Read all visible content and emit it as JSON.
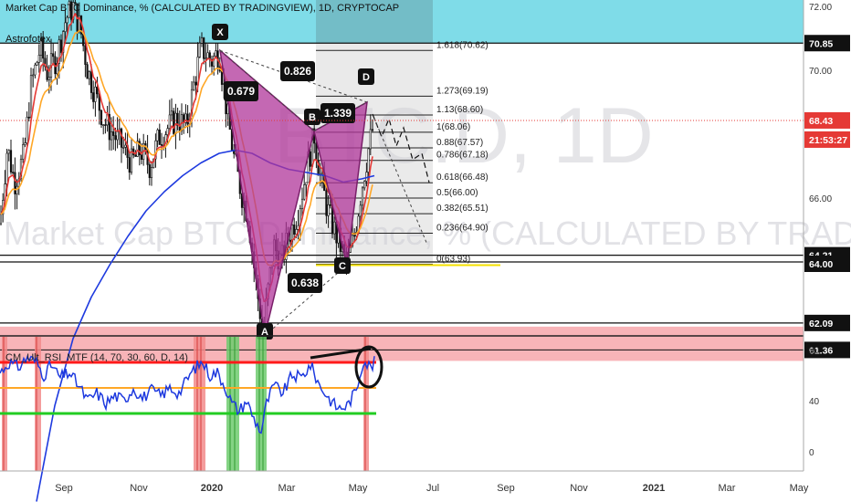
{
  "header": {
    "title": "Market Cap BTC Dominance, % (CALCULATED BY TRADINGVIEW), 1D, CRYPTOCAP",
    "author": "Astrofotex"
  },
  "watermark": {
    "big": "BTC.D, 1D",
    "wide": "Market Cap BTC Dominance, % (CALCULATED BY TRADINGVIEW)"
  },
  "colors": {
    "candle": "#111111",
    "ema_red": "#e53935",
    "ema_orange": "#ffa726",
    "ema_yellow": "#f5d000",
    "ma_blue": "#1e3adf",
    "pattern_fill": "#b0359a",
    "resistance_zone": "#7fdce8",
    "support_zone": "#f8b4b8",
    "rsi_line": "#1e3adf",
    "rsi_upper": "#ff1a1a",
    "rsi_mid": "#ffa726",
    "rsi_lower": "#22cc22",
    "highlight_red": "#f28b8b",
    "highlight_green": "#6ecb6e",
    "current_price": "#e53935"
  },
  "chart_data": [
    {
      "type": "candlestick",
      "title": "Market Cap BTC Dominance, % (CALCULATED BY TRADINGVIEW), 1D, CRYPTOCAP",
      "x_ticks": [
        "Sep",
        "Nov",
        "2020",
        "Mar",
        "May",
        "Jul",
        "Sep",
        "Nov",
        "2021",
        "Mar",
        "May"
      ],
      "y_ticks": [
        72.0,
        70.0,
        68.0,
        66.0,
        64.0,
        62.0
      ],
      "ylim": [
        60.8,
        72.2
      ],
      "price_labels": [
        {
          "value": 70.85,
          "text": "70.85",
          "style": "black"
        },
        {
          "value": 68.43,
          "text": "68.43",
          "style": "red"
        },
        {
          "value": 68.43,
          "text": "21:53:27",
          "style": "red_time"
        },
        {
          "value": 64.21,
          "text": "64.21",
          "style": "black"
        },
        {
          "value": 64.0,
          "text": "64.00",
          "style": "black"
        },
        {
          "value": 62.09,
          "text": "62.09",
          "style": "black"
        },
        {
          "value": 61.36,
          "text": "61.36",
          "style": "black"
        }
      ],
      "zones": [
        {
          "name": "resistance",
          "from": 70.85,
          "to": 72.2
        },
        {
          "name": "support",
          "from": 60.8,
          "to": 61.36
        }
      ],
      "horizontal_lines": [
        70.85,
        64.21,
        64.0,
        62.09
      ],
      "harmonic_points": [
        {
          "label": "X",
          "value": 70.62
        },
        {
          "label": "A",
          "value": 61.7
        },
        {
          "label": "B",
          "value": 68.1
        },
        {
          "label": "C",
          "value": 63.9
        },
        {
          "label": "D",
          "value": 69.0
        }
      ],
      "ratios": [
        "0.826",
        "0.679",
        "1.339",
        "0.638"
      ],
      "fib_levels": [
        {
          "text": "1.618(70.62)",
          "value": 70.62
        },
        {
          "text": "1.273(69.19)",
          "value": 69.19
        },
        {
          "text": "1.13(68.60)",
          "value": 68.6
        },
        {
          "text": "1(68.06)",
          "value": 68.06
        },
        {
          "text": "0.88(67.57)",
          "value": 67.57
        },
        {
          "text": "0.786(67.18)",
          "value": 67.18
        },
        {
          "text": "0.618(66.48)",
          "value": 66.48
        },
        {
          "text": "0.5(66.00)",
          "value": 66.0
        },
        {
          "text": "0.382(65.51)",
          "value": 65.51
        },
        {
          "text": "0.236(64.90)",
          "value": 64.9
        },
        {
          "text": "0(63.93)",
          "value": 63.93
        }
      ],
      "current_price": 68.43
    },
    {
      "type": "line",
      "title": "CM_Ult_RSI_MTF (14, 70, 30, 60, D, 14)",
      "y_ticks": [
        80,
        40,
        0
      ],
      "ylim": [
        -10,
        88
      ],
      "levels": [
        70,
        50,
        30
      ]
    }
  ]
}
